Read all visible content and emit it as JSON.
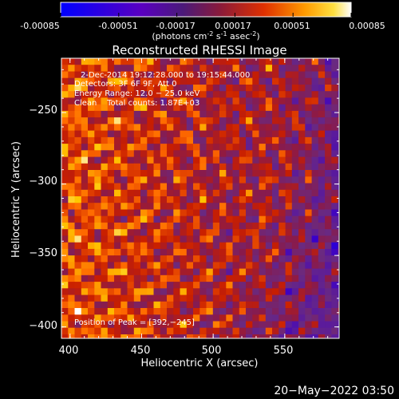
{
  "colorbar": {
    "ticks": [
      "-0.00085",
      "-0.00051",
      "-0.00017",
      "0.00017",
      "0.00051",
      "0.00085"
    ],
    "unit_main": "(photons cm",
    "unit_exp1": "-2",
    "unit_mid": " s",
    "unit_exp2": "-1",
    "unit_end": " asec",
    "unit_exp3": "-2",
    "unit_close": ")"
  },
  "chart_data": {
    "type": "heatmap",
    "title": "Reconstructed RHESSI Image",
    "xlabel": "Heliocentric X (arcsec)",
    "ylabel": "Heliocentric Y (arcsec)",
    "xlim": [
      394,
      588
    ],
    "ylim": [
      -408,
      -212
    ],
    "x_ticks": [
      400,
      450,
      500,
      550
    ],
    "y_ticks": [
      -250,
      -300,
      -350,
      -400
    ],
    "x_tick_labels": [
      "400",
      "450",
      "500",
      "550"
    ],
    "y_tick_labels": [
      "−250",
      "−300",
      "−350",
      "−400"
    ],
    "annotations": {
      "time": "2-Dec-2014 19:12:28.000 to 19:15:44.000",
      "detectors": "Detectors: 3F 6F 9F, Att 0",
      "energy": "Energy Range: 12.0 − 25.0 keV",
      "clean": "Clean    Total counts: 1.87E+03",
      "peak": "Position of Peak = [392,−245]"
    },
    "colormap_range": [
      -0.00085,
      0.00085
    ],
    "colormap": [
      "#0000ff",
      "#3a00c8",
      "#5a1a9c",
      "#6a2a80",
      "#8a1a4a",
      "#c81e00",
      "#ff6a00",
      "#ffc800",
      "#ffffff"
    ]
  },
  "footer": {
    "timestamp": "20−May−2022 03:50"
  }
}
